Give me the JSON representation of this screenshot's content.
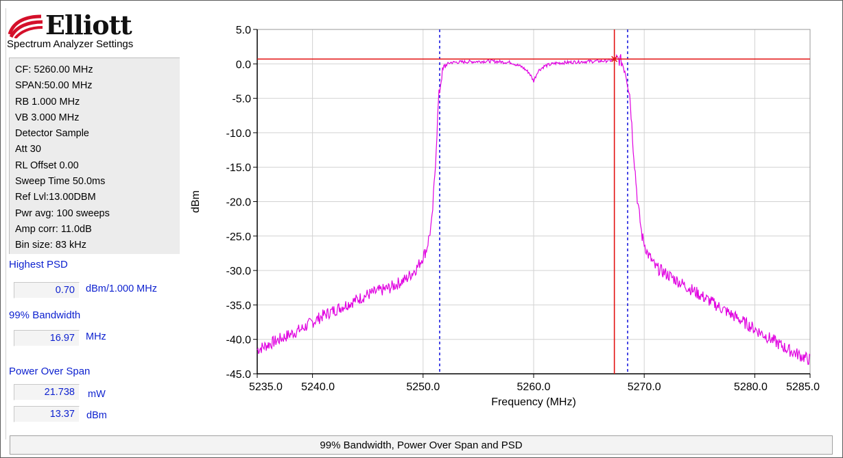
{
  "logo": {
    "text": "Elliott",
    "mark_color": "#d4102a"
  },
  "settings": {
    "title": "Spectrum Analyzer Settings",
    "items": [
      "CF: 5260.00 MHz",
      "SPAN:50.00 MHz",
      "RB 1.000 MHz",
      "VB 3.000 MHz",
      "Detector Sample",
      "Att 30",
      "RL Offset 0.00",
      "Sweep Time 50.0ms",
      "Ref Lvl:13.00DBM",
      "Pwr avg: 100 sweeps",
      "Amp corr: 11.0dB",
      "Bin size: 83 kHz"
    ]
  },
  "highest_psd": {
    "label": "Highest PSD",
    "value": "0.70",
    "unit": "dBm/1.000 MHz"
  },
  "bandwidth_99": {
    "label": "99% Bandwidth",
    "value": "16.97",
    "unit": "MHz"
  },
  "power_over_span": {
    "label": "Power Over Span",
    "value_mw": "21.738",
    "unit_mw": "mW",
    "value_dbm": "13.37",
    "unit_dbm": "dBm"
  },
  "caption": "99% Bandwidth, Power Over Span and PSD",
  "colors": {
    "trace": "#e000e0",
    "marker": "#e31313",
    "bandwidth_lines": "#1a1adf",
    "grid": "#d2d2d2",
    "label_blue": "#0b1fcf"
  },
  "chart_data": {
    "type": "line",
    "xlabel": "Frequency (MHz)",
    "ylabel": "dBm",
    "xlim": [
      5235.0,
      5285.0
    ],
    "ylim": [
      -45.0,
      5.0
    ],
    "xticks": [
      5235.0,
      5240.0,
      5250.0,
      5260.0,
      5270.0,
      5280.0,
      5285.0
    ],
    "xtick_labels": [
      "5235.0",
      "5240.0",
      "5250.0",
      "5260.0",
      "5270.0",
      "5280.0",
      "5285.0"
    ],
    "yticks": [
      5.0,
      0.0,
      -5.0,
      -10.0,
      -15.0,
      -20.0,
      -25.0,
      -30.0,
      -35.0,
      -40.0,
      -45.0
    ],
    "ytick_labels": [
      "5.0",
      "0.0",
      "-5.0",
      "-10.0",
      "-15.0",
      "-20.0",
      "-25.0",
      "-30.0",
      "-35.0",
      "-40.0",
      "-45.0"
    ],
    "grid": true,
    "series": [
      {
        "x": [
          5235.0,
          5237.0,
          5239.0,
          5241.0,
          5243.0,
          5245.0,
          5247.0,
          5248.5,
          5249.5,
          5250.3,
          5250.8,
          5251.1,
          5251.4,
          5251.7,
          5252.0,
          5252.5,
          5254.0,
          5256.0,
          5258.0,
          5259.0,
          5259.6,
          5260.0,
          5260.4,
          5261.0,
          5262.0,
          5264.0,
          5266.0,
          5267.0,
          5267.4,
          5267.9,
          5268.3,
          5268.7,
          5269.0,
          5269.4,
          5269.8,
          5270.3,
          5271.0,
          5273.0,
          5275.0,
          5277.0,
          5279.0,
          5281.0,
          5283.0,
          5285.0
        ],
        "y": [
          -41.5,
          -40.0,
          -38.5,
          -36.5,
          -35.0,
          -33.5,
          -32.5,
          -31.2,
          -29.5,
          -27.0,
          -23.0,
          -15.0,
          -5.0,
          -1.5,
          -0.2,
          0.2,
          0.3,
          0.4,
          0.2,
          -0.5,
          -1.3,
          -2.5,
          -1.0,
          -0.3,
          0.1,
          0.3,
          0.4,
          0.5,
          0.7,
          0.5,
          -1.0,
          -4.5,
          -12.0,
          -20.0,
          -25.0,
          -27.5,
          -29.5,
          -31.5,
          -33.5,
          -35.5,
          -37.5,
          -39.5,
          -41.5,
          -43.0
        ]
      }
    ],
    "marker": {
      "x": 5267.3,
      "y": 0.7
    },
    "bandwidth_lines_x": [
      5251.5,
      5268.5
    ]
  }
}
